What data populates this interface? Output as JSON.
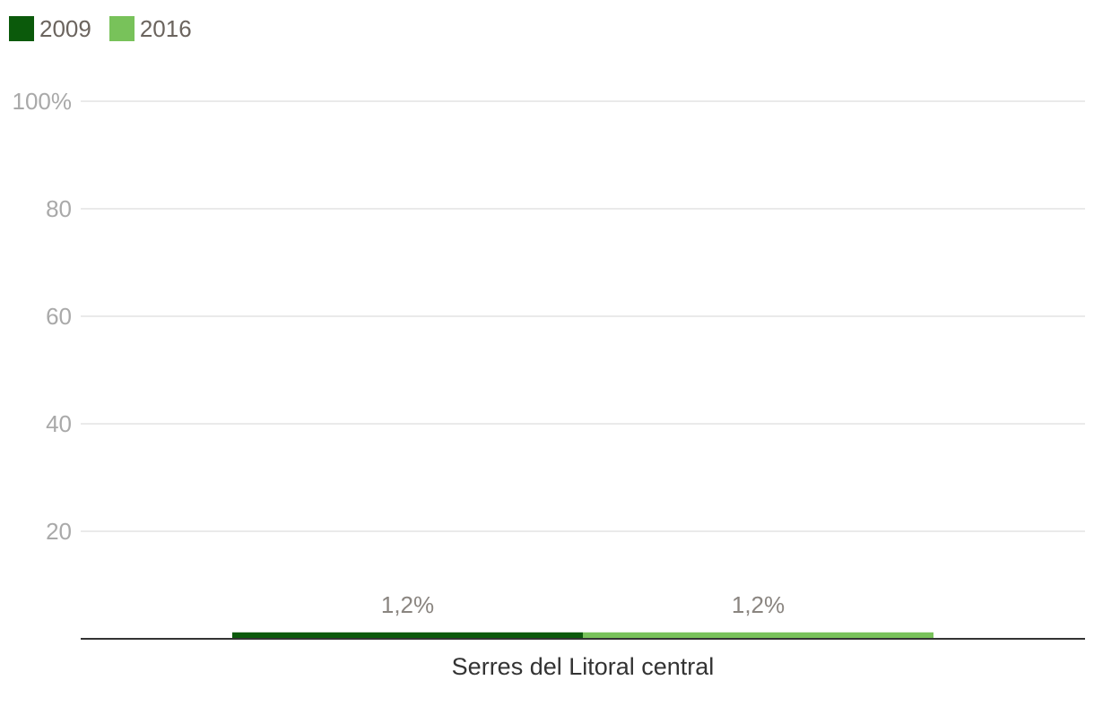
{
  "legend": [
    {
      "label": "2009",
      "color": "#0b5a0b"
    },
    {
      "label": "2016",
      "color": "#78c25a"
    }
  ],
  "chart_data": {
    "type": "bar",
    "categories": [
      "Serres del Litoral central"
    ],
    "series": [
      {
        "name": "2009",
        "values": [
          1.2
        ],
        "value_label": "1,2%",
        "color": "#0b5a0b"
      },
      {
        "name": "2016",
        "values": [
          1.2
        ],
        "value_label": "1,2%",
        "color": "#78c25a"
      }
    ],
    "ylim": [
      0,
      100
    ],
    "yticks": [
      {
        "value": 20,
        "label": "20"
      },
      {
        "value": 40,
        "label": "40"
      },
      {
        "value": 60,
        "label": "60"
      },
      {
        "value": 80,
        "label": "80"
      },
      {
        "value": 100,
        "label": "100%"
      }
    ],
    "grid": true,
    "legend_position": "top-left",
    "title": "",
    "xlabel": "",
    "ylabel": ""
  }
}
